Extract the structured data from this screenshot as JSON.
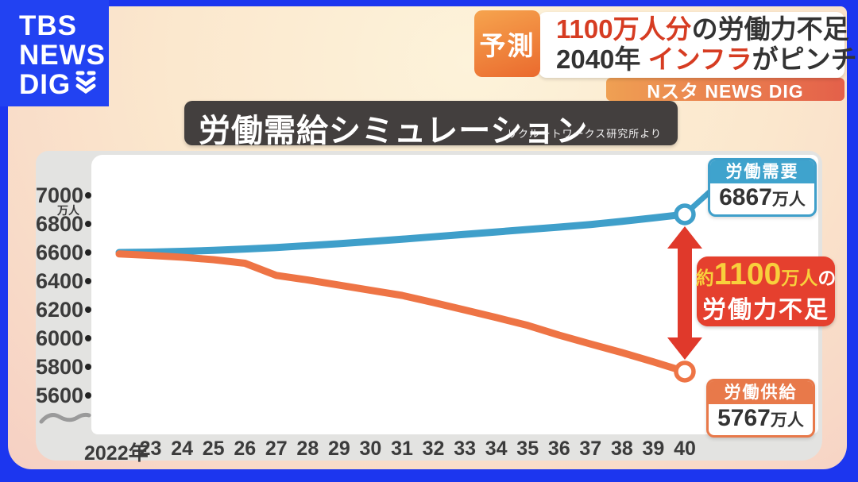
{
  "logo": {
    "line1": "TBS",
    "line2": "NEWS",
    "line3": "DIG"
  },
  "forecast_badge": "予測",
  "headline": {
    "l1_red": "1100万人分",
    "l1_dark": "の労働力不足",
    "l2_dark1": "2040年 ",
    "l2_red": "インフラ",
    "l2_dark2": "がピンチ",
    "banner": "Nスタ NEWS DIG"
  },
  "title": {
    "text": "労働需給シミュレーション",
    "source": "リクルートワークス研究所より"
  },
  "badges": {
    "demand": {
      "header": "労働需要",
      "num": "6867",
      "unit": "万人"
    },
    "supply": {
      "header": "労働供給",
      "num": "5767",
      "unit": "万人"
    }
  },
  "gap_box": {
    "p_approx": "約",
    "p_num": "1100",
    "p_unit": "万人",
    "p_no": "の",
    "line2": "労働力不足"
  },
  "colors": {
    "frame_blue": "#1c36ef",
    "demand_blue": "#3f9fca",
    "supply_orange": "#ee7445",
    "alert_red": "#e0392b",
    "highlight_yellow": "#f8d03c"
  },
  "chart_data": {
    "type": "line",
    "title": "労働需給シミュレーション",
    "source": "リクルートワークス研究所より",
    "ylabel": "万人",
    "ylim": [
      5500,
      7050
    ],
    "yticks": [
      7000,
      6800,
      6600,
      6400,
      6200,
      6000,
      5800,
      5600
    ],
    "x": [
      2022,
      2023,
      2024,
      2025,
      2026,
      2027,
      2028,
      2029,
      2030,
      2031,
      2032,
      2033,
      2034,
      2035,
      2036,
      2037,
      2038,
      2039,
      2040
    ],
    "x_tick_labels": [
      "2022年",
      "23",
      "24",
      "25",
      "26",
      "27",
      "28",
      "29",
      "30",
      "31",
      "32",
      "33",
      "34",
      "35",
      "36",
      "37",
      "38",
      "39",
      "40"
    ],
    "grid": false,
    "legend_position": "end-of-line badges",
    "series": [
      {
        "name": "労働需要",
        "color": "#3f9fca",
        "end_label": "6867万人",
        "values": [
          6600,
          6603,
          6608,
          6615,
          6624,
          6635,
          6648,
          6662,
          6677,
          6693,
          6710,
          6727,
          6744,
          6761,
          6778,
          6796,
          6818,
          6842,
          6867
        ]
      },
      {
        "name": "労働供給",
        "color": "#ee7445",
        "end_label": "5767万人",
        "values": [
          6590,
          6580,
          6567,
          6550,
          6525,
          6440,
          6408,
          6372,
          6336,
          6300,
          6250,
          6198,
          6145,
          6090,
          6022,
          5960,
          5900,
          5835,
          5767
        ]
      }
    ],
    "annotation": {
      "text": "約1100万人の労働力不足",
      "between": [
        "労働需要 2040",
        "労働供給 2040"
      ]
    }
  }
}
